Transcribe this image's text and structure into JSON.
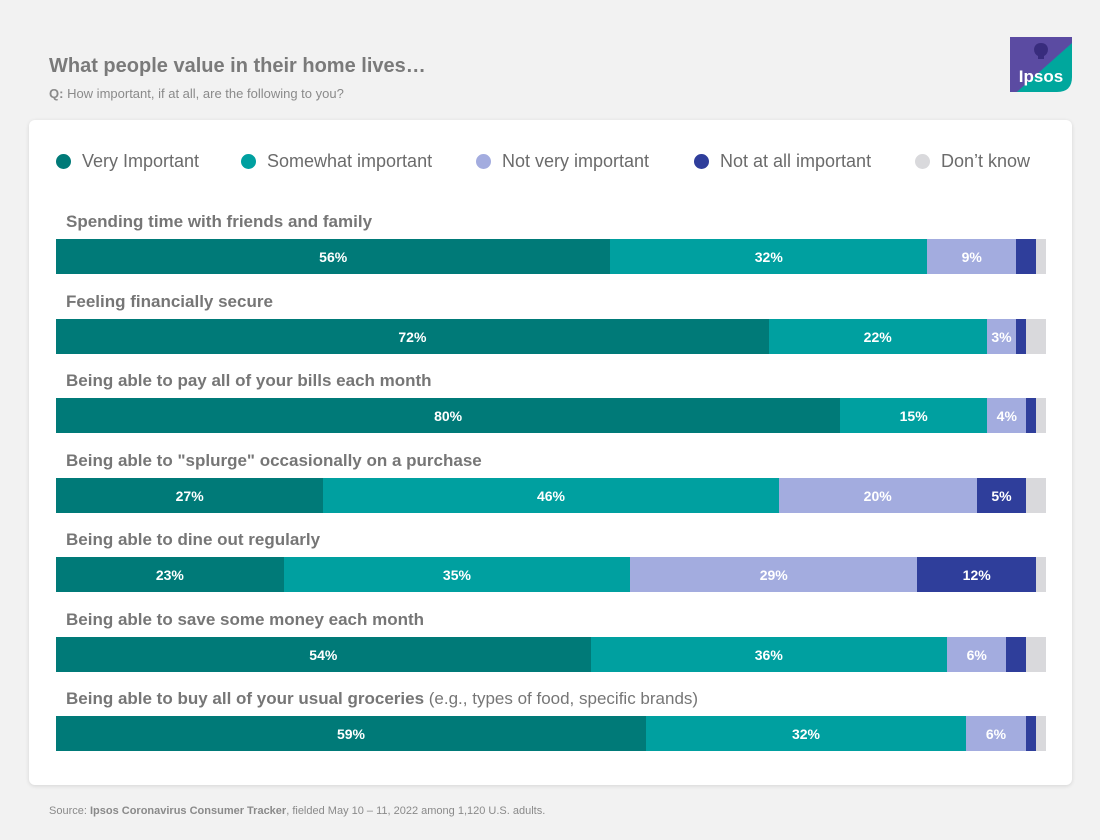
{
  "header": {
    "title": "What people value in their home lives…",
    "q_prefix": "Q:",
    "question": " How important, if at all, are the following to you?"
  },
  "logo": {
    "text": "Ipsos",
    "colors": [
      "#5b4ba2",
      "#00a79d"
    ]
  },
  "colors": {
    "very": "#007a78",
    "somewhat": "#00a0a0",
    "notvery": "#a3acdf",
    "notatall": "#2f3e9b",
    "dontknow": "#d9d9dc"
  },
  "source": {
    "prefix": "Source: ",
    "bold": "Ipsos Coronavirus Consumer Tracker",
    "rest": ", fielded May 10 – 11, 2022 among 1,120 U.S. adults."
  },
  "chart_data": {
    "type": "bar",
    "orientation": "horizontal",
    "stacked": true,
    "unit": "%",
    "title": "What people value in their home lives…",
    "subtitle": "Q: How important, if at all, are the following to you?",
    "legend_position": "top",
    "series": [
      {
        "key": "very",
        "name": "Very Important",
        "values": [
          56,
          72,
          80,
          27,
          23,
          54,
          59
        ]
      },
      {
        "key": "somewhat",
        "name": "Somewhat important",
        "values": [
          32,
          22,
          15,
          46,
          35,
          36,
          32
        ]
      },
      {
        "key": "notvery",
        "name": "Not very important",
        "values": [
          9,
          3,
          4,
          20,
          29,
          6,
          6
        ]
      },
      {
        "key": "notatall",
        "name": "Not at all important",
        "values": [
          2,
          1,
          1,
          5,
          12,
          2,
          1
        ]
      },
      {
        "key": "dontknow",
        "name": "Don’t know",
        "values": [
          1,
          2,
          1,
          2,
          1,
          2,
          1
        ]
      }
    ],
    "categories": [
      {
        "label": "Spending time with friends and family",
        "extra": ""
      },
      {
        "label": "Feeling financially secure",
        "extra": ""
      },
      {
        "label": "Being able to pay all of your bills each month",
        "extra": ""
      },
      {
        "label": "Being able to \"splurge\" occasionally on a purchase",
        "extra": ""
      },
      {
        "label": "Being able to dine out regularly",
        "extra": ""
      },
      {
        "label": "Being able to save some money each month",
        "extra": ""
      },
      {
        "label": "Being able to buy all of your usual groceries",
        "extra": " (e.g., types of food, specific brands)"
      }
    ],
    "shown_labels": [
      [
        true,
        true,
        true,
        false,
        false
      ],
      [
        true,
        true,
        true,
        false,
        false
      ],
      [
        true,
        true,
        true,
        false,
        false
      ],
      [
        true,
        true,
        true,
        true,
        false
      ],
      [
        true,
        true,
        true,
        true,
        false
      ],
      [
        true,
        true,
        true,
        false,
        false
      ],
      [
        true,
        true,
        true,
        false,
        false
      ]
    ]
  }
}
